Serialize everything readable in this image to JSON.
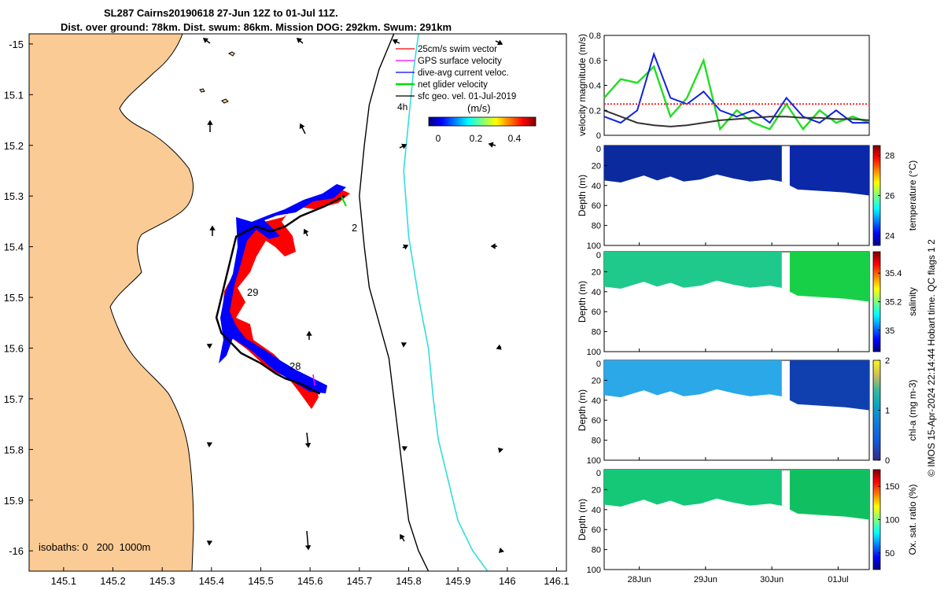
{
  "figure": {
    "title_line1": "SL287 Cairns20190618 27-Jun 12Z to 01-Jul 11Z.",
    "title_line2": "Dist. over ground: 78km. Dist. swum: 86km. Mission DOG: 292km. Swum: 291km",
    "credit": "© IMOS 15-Apr-2024 22:14:44 Hobart time. QC flags 1  2"
  },
  "map": {
    "legend": [
      {
        "label": "25cm/s swim vector",
        "color": "#ff0000"
      },
      {
        "label": "GPS surface velocity",
        "color": "#ff00ff"
      },
      {
        "label": "dive-avg current veloc.",
        "color": "#0000ff"
      },
      {
        "label": "net glider velocity",
        "color": "#00dd00"
      },
      {
        "label": "sfc geo. vel. 01-Jul-2019",
        "color": "#000000"
      }
    ],
    "colorbar_title": "(m/s)",
    "colorbar_ticks": [
      "0",
      "0.2",
      "0.4"
    ],
    "isobaths_label": "isobaths: 0   200  1000m",
    "track_labels": [
      "4h",
      "2",
      "29",
      "28"
    ]
  },
  "chart_data": [
    {
      "type": "line",
      "panel": "map",
      "xlabel": "",
      "ylabel": "",
      "xlim": [
        145.03,
        146.12
      ],
      "ylim": [
        -16.04,
        -14.98
      ],
      "xticks": [
        145.1,
        145.2,
        145.3,
        145.4,
        145.5,
        145.6,
        145.7,
        145.8,
        145.9,
        146,
        146.1
      ],
      "yticks": [
        -15,
        -15.1,
        -15.2,
        -15.3,
        -15.4,
        -15.5,
        -15.6,
        -15.7,
        -15.8,
        -15.9,
        -16
      ],
      "ytick_labels": [
        "-15",
        "15.1",
        "15.2",
        "15.3",
        "15.4",
        "15.5",
        "15.6",
        "15.7",
        "15.8",
        "15.9",
        "-16"
      ],
      "glider_track_lon": [
        145.67,
        145.63,
        145.58,
        145.55,
        145.52,
        145.49,
        145.45,
        145.44,
        145.43,
        145.42,
        145.41,
        145.42,
        145.44,
        145.46,
        145.5,
        145.53,
        145.55,
        145.58,
        145.6,
        145.62
      ],
      "glider_track_lat": [
        -15.3,
        -15.32,
        -15.34,
        -15.36,
        -15.37,
        -15.36,
        -15.38,
        -15.42,
        -15.46,
        -15.5,
        -15.54,
        -15.57,
        -15.59,
        -15.61,
        -15.63,
        -15.65,
        -15.66,
        -15.67,
        -15.68,
        -15.69
      ],
      "isobath_200m_lon": [
        145.77,
        145.74,
        145.72,
        145.71,
        145.7,
        145.71,
        145.72,
        145.74,
        145.76,
        145.77,
        145.78,
        145.79,
        145.8,
        145.82,
        145.84
      ],
      "isobath_200m_lat": [
        -14.98,
        -15.05,
        -15.12,
        -15.2,
        -15.3,
        -15.4,
        -15.48,
        -15.55,
        -15.62,
        -15.7,
        -15.78,
        -15.86,
        -15.94,
        -16.0,
        -16.04
      ],
      "isobath_1000m_lon": [
        145.82,
        145.81,
        145.8,
        145.79,
        145.8,
        145.82,
        145.84,
        145.85,
        145.86,
        145.88,
        145.9,
        145.93,
        145.96
      ],
      "isobath_1000m_lat": [
        -14.98,
        -15.05,
        -15.15,
        -15.25,
        -15.38,
        -15.5,
        -15.6,
        -15.7,
        -15.78,
        -15.86,
        -15.94,
        -16.0,
        -16.04
      ]
    },
    {
      "type": "line",
      "panel": "velocity",
      "ylabel": "velocity magnitude (m/s)",
      "ylim": [
        0,
        0.8
      ],
      "yticks": [
        0,
        0.2,
        0.4,
        0.6,
        0.8
      ],
      "x_days": [
        0,
        0.25,
        0.5,
        0.75,
        1.0,
        1.25,
        1.5,
        1.75,
        2.0,
        2.25,
        2.5,
        2.75,
        3.0,
        3.25,
        3.5,
        3.75,
        4.0
      ],
      "series": [
        {
          "name": "net glider velocity",
          "color": "#22dd22",
          "values": [
            0.3,
            0.45,
            0.42,
            0.55,
            0.15,
            0.3,
            0.6,
            0.05,
            0.2,
            0.1,
            0.05,
            0.25,
            0.05,
            0.2,
            0.1,
            0.15,
            0.1
          ]
        },
        {
          "name": "dive-avg current veloc.",
          "color": "#1122dd",
          "values": [
            0.15,
            0.1,
            0.2,
            0.65,
            0.3,
            0.25,
            0.35,
            0.2,
            0.15,
            0.2,
            0.1,
            0.3,
            0.15,
            0.1,
            0.2,
            0.1,
            0.1
          ]
        },
        {
          "name": "sfc geo. vel.",
          "color": "#333333",
          "values": [
            0.2,
            0.15,
            0.1,
            0.08,
            0.07,
            0.08,
            0.1,
            0.12,
            0.13,
            0.14,
            0.15,
            0.15,
            0.14,
            0.14,
            0.13,
            0.13,
            0.12
          ]
        },
        {
          "name": "25cm/s swim vector",
          "color": "#ff2222",
          "values": [
            0.25,
            0.25,
            0.25,
            0.25,
            0.25,
            0.25,
            0.25,
            0.25,
            0.25,
            0.25,
            0.25,
            0.25,
            0.25,
            0.25,
            0.25,
            0.25,
            0.25
          ]
        }
      ]
    },
    {
      "type": "heatmap",
      "panel": "temperature",
      "ylabel": "Depth (m)",
      "cblabel": "temperature (°C)",
      "ylim": [
        100,
        0
      ],
      "yticks": [
        20,
        40,
        60,
        80,
        100
      ],
      "clim": [
        23.5,
        28.5
      ],
      "cticks": [
        "24",
        "26",
        "28"
      ],
      "typical_value": 24
    },
    {
      "type": "heatmap",
      "panel": "salinity",
      "ylabel": "Depth (m)",
      "cblabel": "salinity",
      "ylim": [
        100,
        0
      ],
      "yticks": [
        20,
        40,
        60,
        80,
        100
      ],
      "clim": [
        34.85,
        35.55
      ],
      "cticks": [
        "35",
        "35.2",
        "35.4"
      ],
      "typical_value": 35.15
    },
    {
      "type": "heatmap",
      "panel": "chlorophyll",
      "ylabel": "Depth (m)",
      "cblabel": "chl-a (mg m-3)",
      "ylim": [
        100,
        0
      ],
      "yticks": [
        20,
        40,
        60,
        80,
        100
      ],
      "clim": [
        0,
        2
      ],
      "cticks": [
        "0",
        "1",
        "2"
      ],
      "typical_value": 0.6
    },
    {
      "type": "heatmap",
      "panel": "oxygen",
      "ylabel": "Depth (m)",
      "cblabel": "Ox. sat. ratio (%)",
      "ylim": [
        100,
        0
      ],
      "yticks": [
        20,
        40,
        60,
        80,
        100
      ],
      "clim": [
        25,
        175
      ],
      "cticks": [
        "50",
        "100",
        "150"
      ],
      "typical_value": 110,
      "xtick_labels": [
        "28Jun",
        "29Jun",
        "30Jun",
        "01Jul"
      ]
    }
  ],
  "colors": {
    "land": "#fbcb95",
    "track_red": "#ff0000",
    "track_blue": "#0000ff",
    "isobath_200": "#000000",
    "isobath_1000": "#33dddd"
  }
}
